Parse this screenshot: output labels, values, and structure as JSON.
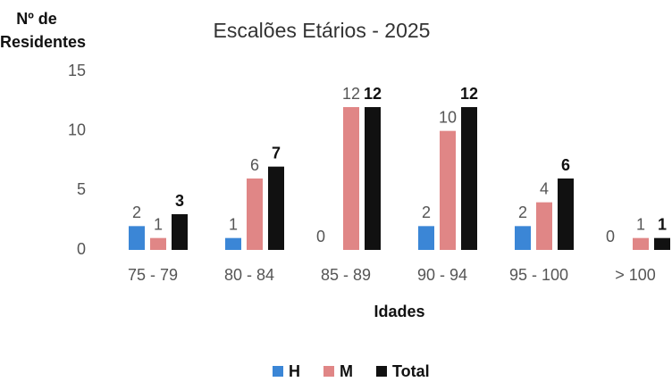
{
  "chart_data": {
    "type": "bar",
    "title": "Escalões Etários - 2025",
    "y_label": "Nº de Residentes",
    "x_label": "Idades",
    "categories": [
      "75 - 79",
      "80 - 84",
      "85 - 89",
      "90 - 94",
      "95 - 100",
      "> 100"
    ],
    "series": [
      {
        "name": "H",
        "color": "#3b86d6",
        "values": [
          2,
          1,
          0,
          2,
          2,
          0
        ]
      },
      {
        "name": "M",
        "color": "#e08686",
        "values": [
          1,
          6,
          12,
          10,
          4,
          1
        ]
      },
      {
        "name": "Total",
        "color": "#111111",
        "values": [
          3,
          7,
          12,
          12,
          6,
          1
        ]
      }
    ],
    "ylim": [
      0,
      15
    ],
    "yticks": [
      0,
      5,
      10,
      15
    ],
    "grid": false,
    "legend": "bottom"
  }
}
